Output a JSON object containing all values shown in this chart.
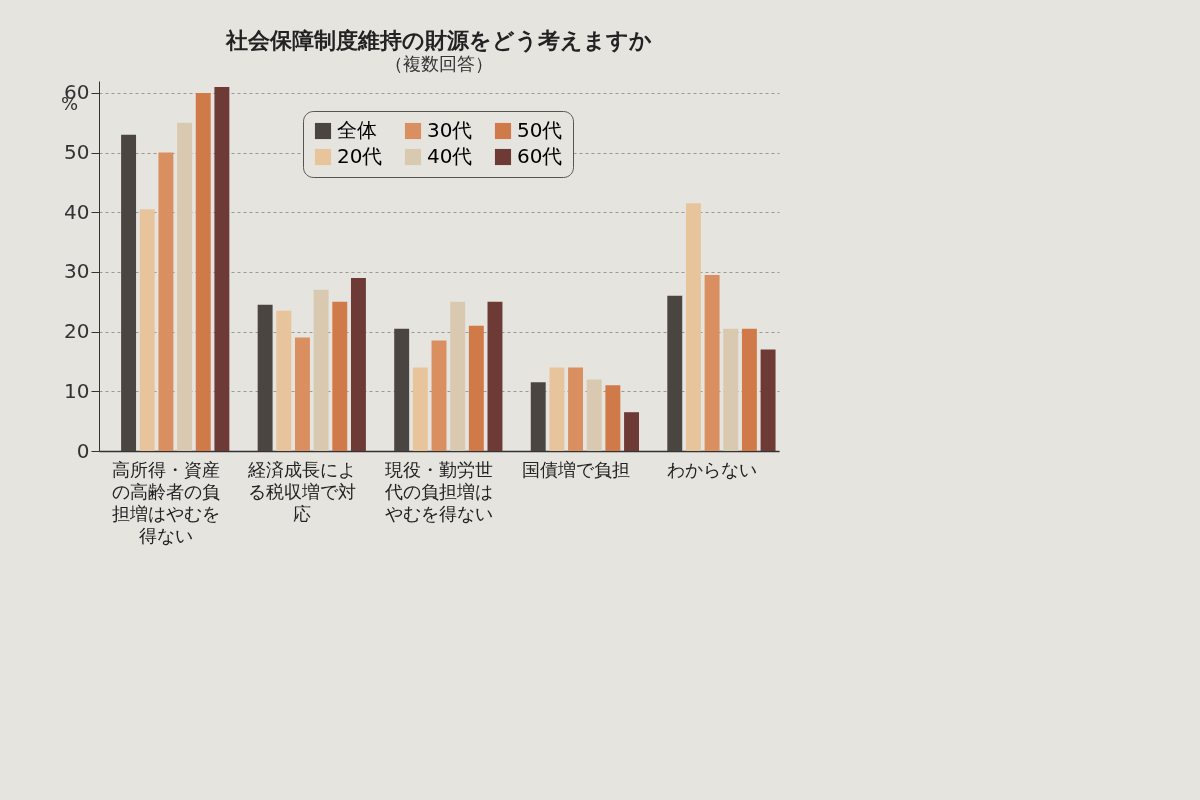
{
  "chart_data": {
    "type": "bar",
    "title": "社会保障制度維持の財源をどう考えますか",
    "subtitle": "（複数回答）",
    "ylabel": "%",
    "categories": [
      "高所得・資産の高齢者の負担増はやむを得ない",
      "経済成長による税収増で対応",
      "現役・勤労世代の負担増はやむを得ない",
      "国債増で負担",
      "わからない"
    ],
    "series": [
      {
        "name": "全体",
        "color": "#4a4540",
        "values": [
          53,
          24.5,
          20.5,
          11.5,
          26
        ]
      },
      {
        "name": "20代",
        "color": "#e8c49c",
        "values": [
          40.5,
          23.5,
          14,
          14,
          41.5
        ]
      },
      {
        "name": "30代",
        "color": "#d98f60",
        "values": [
          50,
          19,
          18.5,
          14,
          29.5
        ]
      },
      {
        "name": "40代",
        "color": "#d8c9b0",
        "values": [
          55,
          27,
          25,
          12,
          20.5
        ]
      },
      {
        "name": "50代",
        "color": "#d07a4a",
        "values": [
          60,
          25,
          21,
          11,
          20.5
        ]
      },
      {
        "name": "60代",
        "color": "#6e3a35",
        "values": [
          61,
          29,
          25,
          6.5,
          17
        ]
      }
    ],
    "ylim": [
      0,
      62
    ],
    "yticks": [
      0,
      10,
      20,
      30,
      40,
      50,
      60
    ],
    "grid": "y",
    "legend": "top"
  }
}
